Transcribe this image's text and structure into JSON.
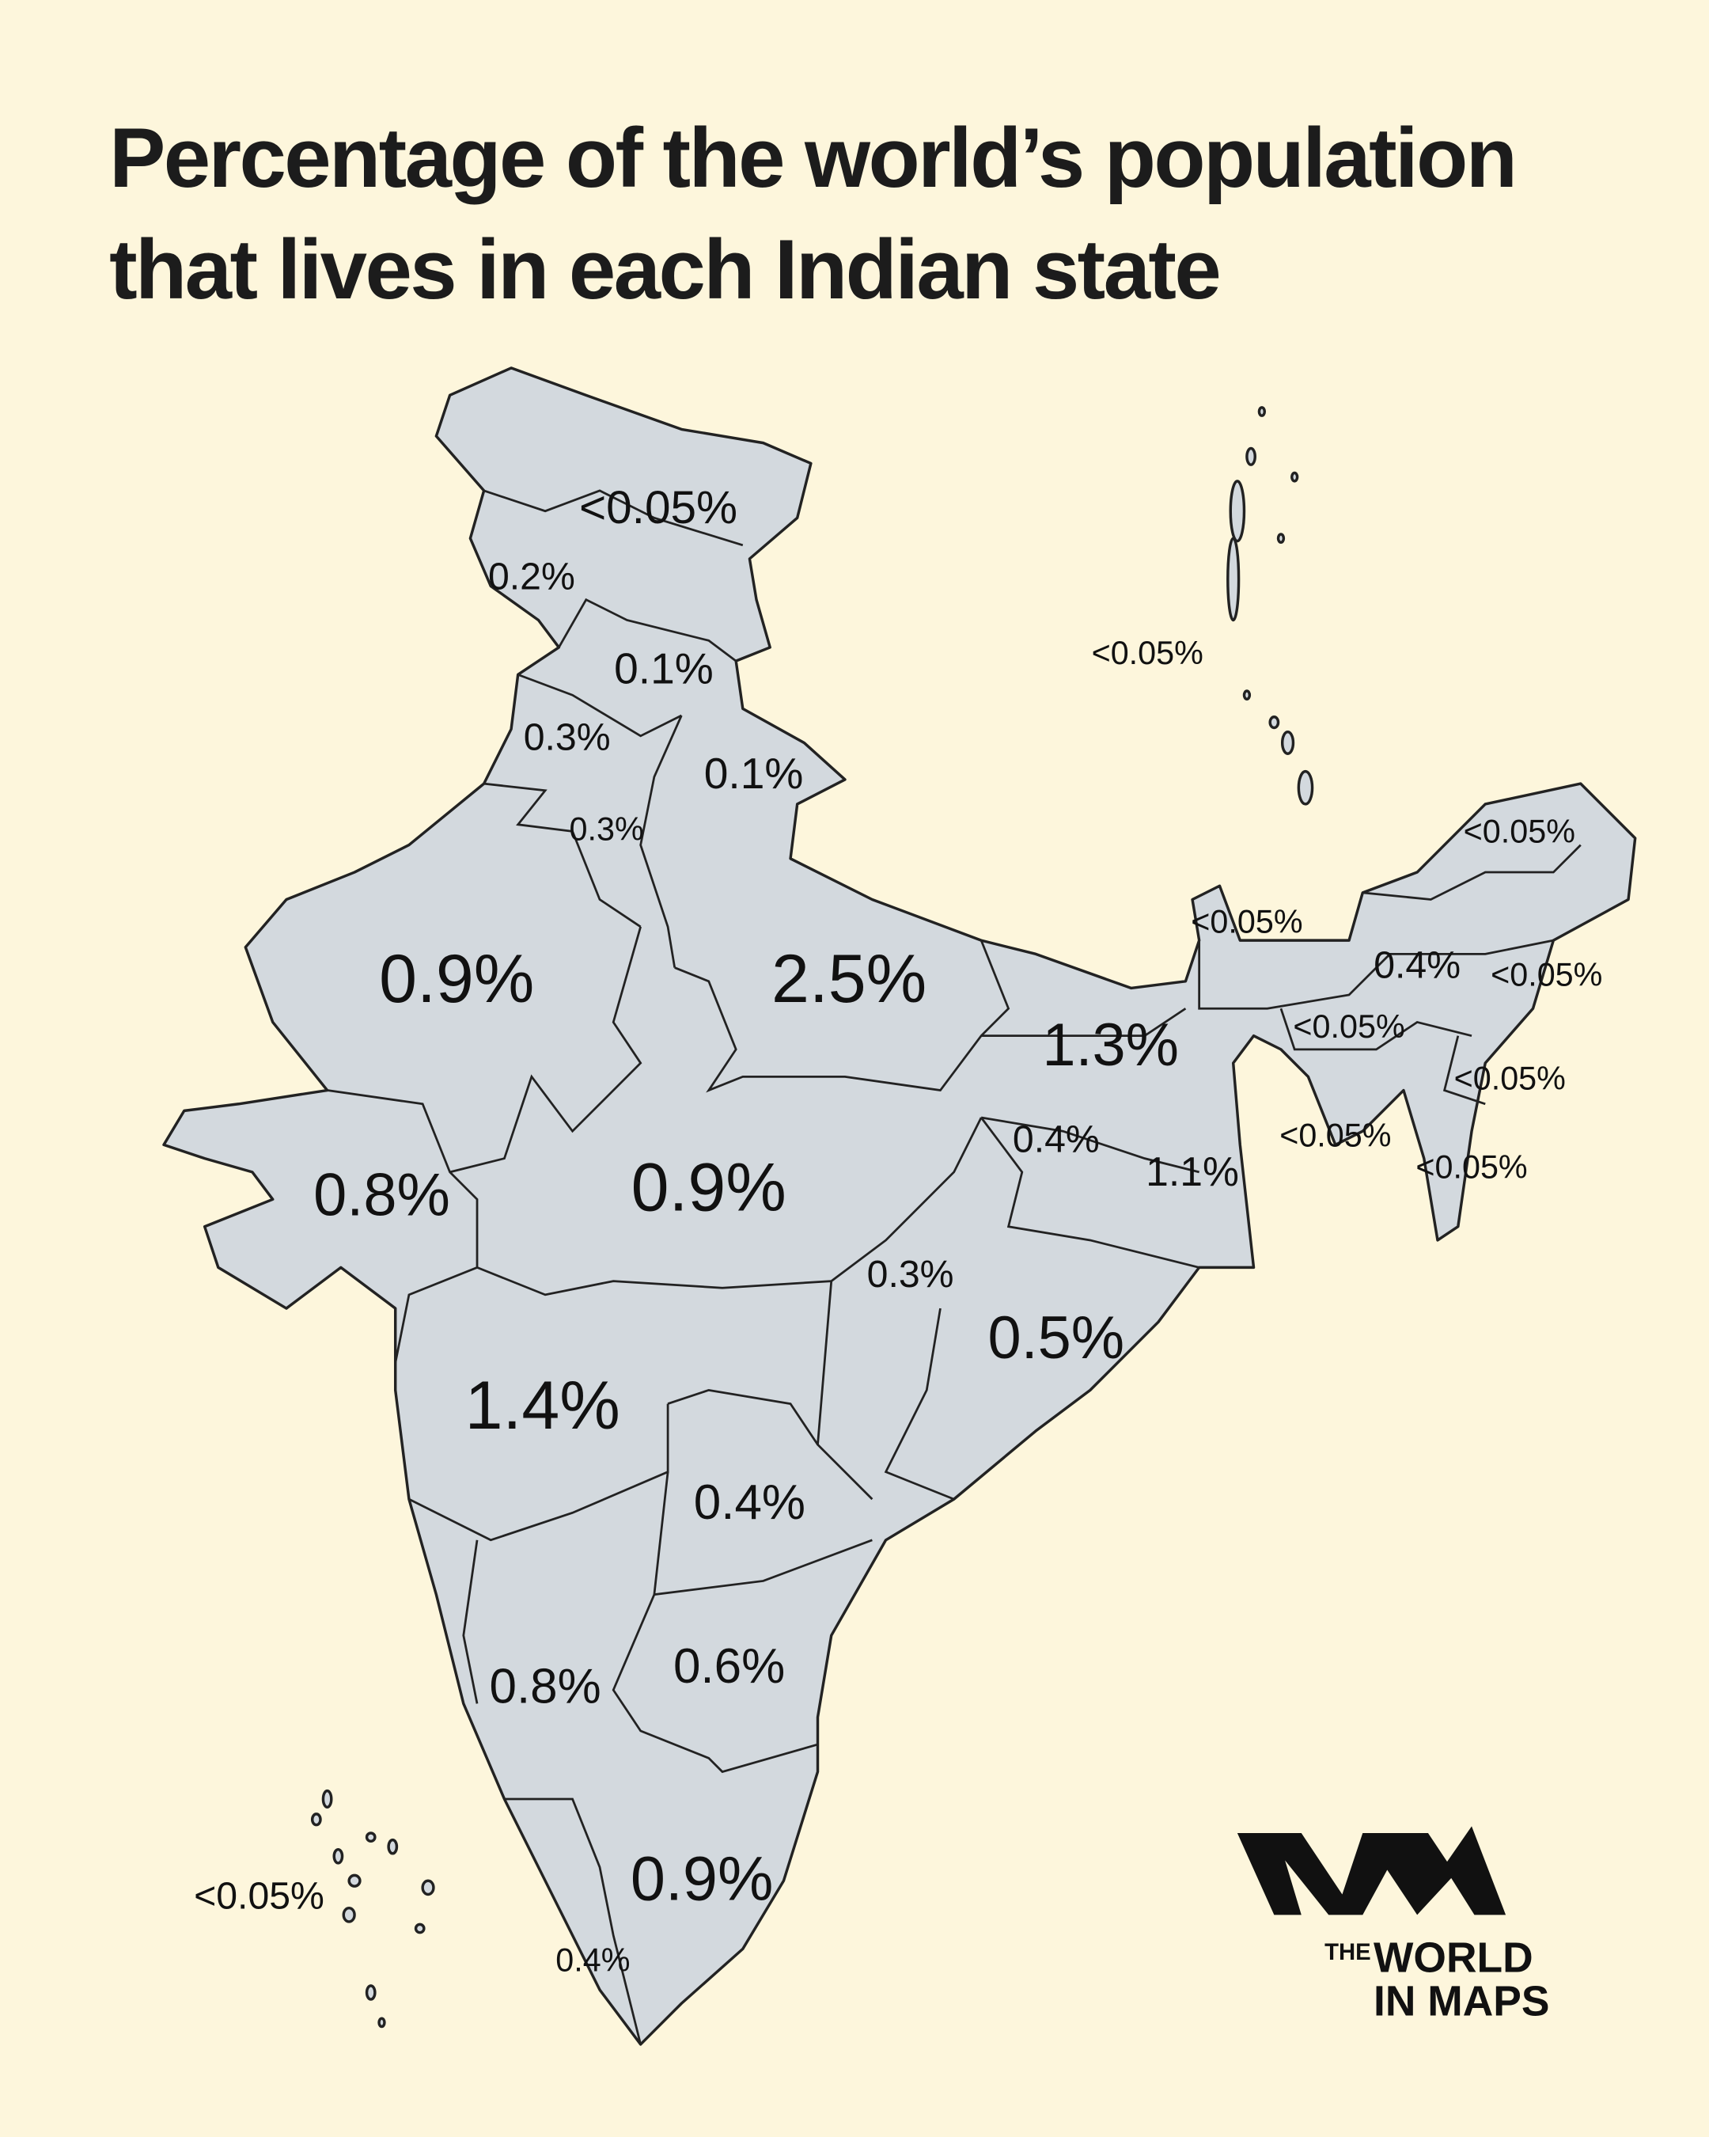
{
  "header": {
    "title_lines": [
      "Percentage of the world’s population",
      "that lives in each Indian state"
    ]
  },
  "map": {
    "labels": [
      "<0.05%",
      "0.2%",
      "0.1%",
      "0.3%",
      "0.1%",
      "0.3%",
      "0.9%",
      "2.5%",
      "1.3%",
      "0.8%",
      "0.9%",
      "0.4%",
      "1.1%",
      "0.3%",
      "0.5%",
      "1.4%",
      "0.4%",
      "0.8%",
      "0.6%",
      "0.9%",
      "0.4%",
      "<0.05%",
      "0.4%",
      "<0.05%",
      "<0.05%",
      "<0.05%",
      "<0.05%",
      "<0.05%",
      "<0.05%",
      "<0.05%",
      "<0.05%"
    ]
  },
  "logo": {
    "small": "THE",
    "line1": "WORLD",
    "line2": "IN MAPS"
  }
}
